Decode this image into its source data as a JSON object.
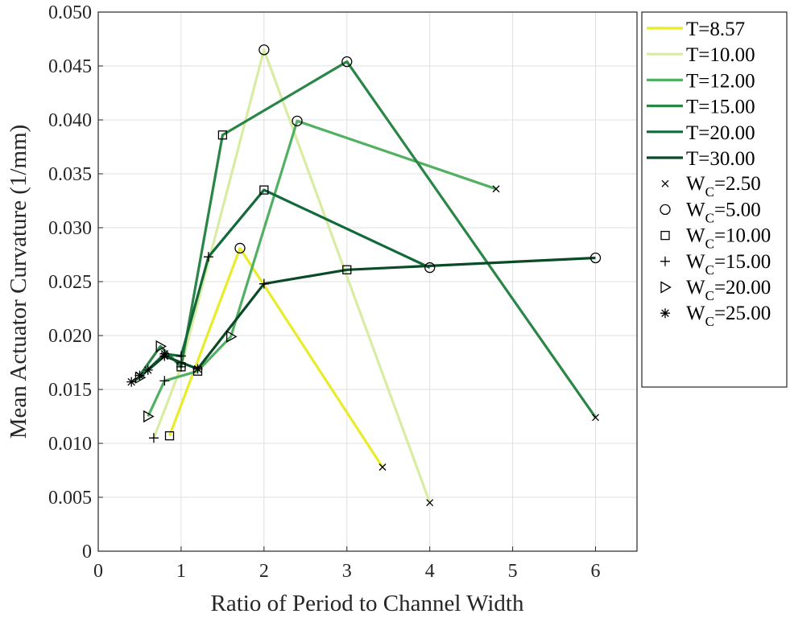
{
  "chart_data": {
    "type": "line",
    "xlabel": "Ratio of Period to Channel Width",
    "ylabel": "Mean Actuator Curvature (1/mm)",
    "xlim": [
      0,
      6.5
    ],
    "ylim": [
      0,
      0.05
    ],
    "xticks": [
      0,
      1,
      2,
      3,
      4,
      5,
      6
    ],
    "xtick_labels": [
      "0",
      "1",
      "2",
      "3",
      "4",
      "5",
      "6"
    ],
    "yticks": [
      0,
      0.005,
      0.01,
      0.015,
      0.02,
      0.025,
      0.03,
      0.035,
      0.04,
      0.045,
      0.05
    ],
    "ytick_labels": [
      "0",
      "0.005",
      "0.010",
      "0.015",
      "0.020",
      "0.025",
      "0.030",
      "0.035",
      "0.040",
      "0.045",
      "0.050"
    ],
    "grid": true,
    "legend_position": "outside-right",
    "series": [
      {
        "name": "T=8.57",
        "color": "#e8ec2a",
        "points": [
          [
            0.86,
            0.0107,
            "square"
          ],
          [
            1.71,
            0.0281,
            "circle"
          ],
          [
            3.43,
            0.0078,
            "x"
          ]
        ]
      },
      {
        "name": "T=10.00",
        "color": "#d8eca4",
        "points": [
          [
            0.67,
            0.0105,
            "plus"
          ],
          [
            1.0,
            0.0171,
            "square"
          ],
          [
            2.0,
            0.0465,
            "circle"
          ],
          [
            4.0,
            0.0045,
            "x"
          ]
        ]
      },
      {
        "name": "T=12.00",
        "color": "#52b062",
        "points": [
          [
            0.6,
            0.0125,
            "triangle"
          ],
          [
            0.8,
            0.0158,
            "plus"
          ],
          [
            1.2,
            0.0167,
            "square"
          ],
          [
            1.6,
            0.0199,
            "triangle"
          ],
          [
            2.4,
            0.0399,
            "circle"
          ],
          [
            4.8,
            0.0336,
            "x"
          ]
        ]
      },
      {
        "name": "T=15.00",
        "color": "#2a8646",
        "points": [
          [
            0.5,
            0.0163,
            "star"
          ],
          [
            0.75,
            0.019,
            "triangle"
          ],
          [
            1.0,
            0.0171,
            "plus"
          ],
          [
            1.5,
            0.0386,
            "square"
          ],
          [
            3.0,
            0.0454,
            "circle"
          ],
          [
            6.0,
            0.0124,
            "x"
          ]
        ]
      },
      {
        "name": "T=20.00",
        "color": "#12693a",
        "points": [
          [
            0.4,
            0.0157,
            "star"
          ],
          [
            0.5,
            0.0161,
            "triangle"
          ],
          [
            0.8,
            0.0183,
            "star"
          ],
          [
            1.0,
            0.0181,
            "plus"
          ],
          [
            1.33,
            0.0273,
            "plus"
          ],
          [
            2.0,
            0.0335,
            "square"
          ],
          [
            4.0,
            0.0263,
            "circle"
          ]
        ]
      },
      {
        "name": "T=30.00",
        "color": "#0a4a26",
        "points": [
          [
            0.6,
            0.0168,
            "star"
          ],
          [
            0.8,
            0.0181,
            "star"
          ],
          [
            1.2,
            0.0169,
            "star"
          ],
          [
            2.0,
            0.0248,
            "plus"
          ],
          [
            3.0,
            0.0261,
            "square"
          ],
          [
            6.0,
            0.0272,
            "circle"
          ]
        ]
      }
    ],
    "marker_legend": [
      {
        "prefix": "W",
        "sub": "C",
        "value": "=2.50",
        "marker": "x"
      },
      {
        "prefix": "W",
        "sub": "C",
        "value": "=5.00",
        "marker": "circle"
      },
      {
        "prefix": "W",
        "sub": "C",
        "value": "=10.00",
        "marker": "square"
      },
      {
        "prefix": "W",
        "sub": "C",
        "value": "=15.00",
        "marker": "plus"
      },
      {
        "prefix": "W",
        "sub": "C",
        "value": "=20.00",
        "marker": "triangle"
      },
      {
        "prefix": "W",
        "sub": "C",
        "value": "=25.00",
        "marker": "star"
      }
    ]
  }
}
